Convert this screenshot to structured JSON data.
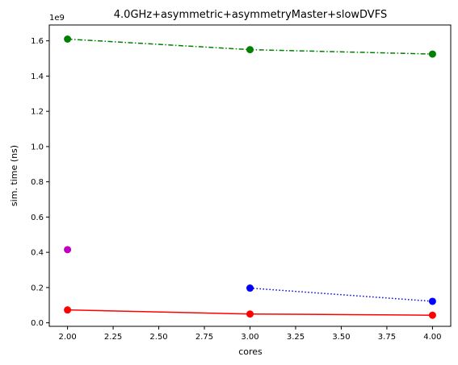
{
  "chart_data": {
    "type": "line",
    "title": "4.0GHz+asymmetric+asymmetryMaster+slowDVFS",
    "xlabel": "cores",
    "ylabel": "sim. time (ns)",
    "y_offset_label": "1e9",
    "xlim": [
      1.9,
      4.1
    ],
    "ylim": [
      -0.02,
      1.69
    ],
    "x_ticks": [
      2.0,
      2.25,
      2.5,
      2.75,
      3.0,
      3.25,
      3.5,
      3.75,
      4.0
    ],
    "x_tick_labels": [
      "2.00",
      "2.25",
      "2.50",
      "2.75",
      "3.00",
      "3.25",
      "3.50",
      "3.75",
      "4.00"
    ],
    "y_ticks": [
      0.0,
      0.2,
      0.4,
      0.6,
      0.8,
      1.0,
      1.2,
      1.4,
      1.6
    ],
    "y_tick_labels": [
      "0.0",
      "0.2",
      "0.4",
      "0.6",
      "0.8",
      "1.0",
      "1.2",
      "1.4",
      "1.6"
    ],
    "grid": false,
    "series": [
      {
        "color": "#008000",
        "linestyle": "dashdot",
        "x": [
          2,
          3,
          4
        ],
        "y": [
          1.61,
          1.55,
          1.525
        ]
      },
      {
        "color": "#bf00bf",
        "linestyle": "none",
        "x": [
          2
        ],
        "y": [
          0.415
        ]
      },
      {
        "color": "#0000ff",
        "linestyle": "dotted",
        "x": [
          3,
          4
        ],
        "y": [
          0.197,
          0.122
        ]
      },
      {
        "color": "#ff0000",
        "linestyle": "solid",
        "x": [
          2,
          3,
          4
        ],
        "y": [
          0.073,
          0.05,
          0.043
        ]
      }
    ]
  }
}
